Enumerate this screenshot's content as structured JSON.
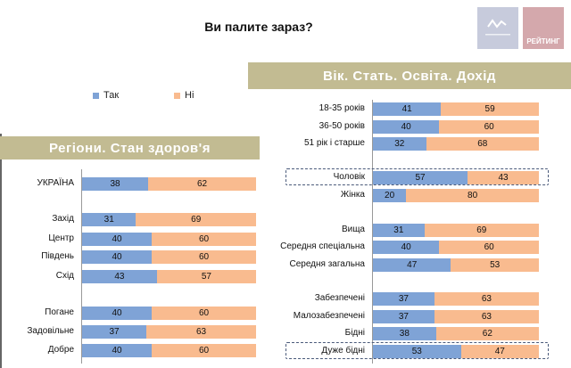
{
  "title": "Ви палите зараз?",
  "logos": {
    "left": "",
    "right": "РЕЙТИНГ"
  },
  "colors": {
    "tak": "#7fa3d6",
    "ni": "#f9bb8f",
    "band": "#c2bb92"
  },
  "legend": [
    {
      "label": "Так",
      "color": "#7fa3d6"
    },
    {
      "label": "Ні",
      "color": "#f9bb8f"
    }
  ],
  "chart_data": [
    {
      "type": "bar",
      "stacked": true,
      "orientation": "horizontal",
      "title": "Регіони. Стан здоров'я",
      "categories": [
        "УКРАЇНА",
        "Захід",
        "Центр",
        "Південь",
        "Схід",
        "Погане",
        "Задовільне",
        "Добре"
      ],
      "series": [
        {
          "name": "Так",
          "values": [
            38,
            31,
            40,
            40,
            43,
            40,
            37,
            40
          ]
        },
        {
          "name": "Ні",
          "values": [
            62,
            69,
            60,
            60,
            57,
            60,
            63,
            60
          ]
        }
      ],
      "xlim": [
        0,
        100
      ]
    },
    {
      "type": "bar",
      "stacked": true,
      "orientation": "horizontal",
      "title": "Вік. Стать. Освіта. Дохід",
      "categories": [
        "18-35 років",
        "36-50 років",
        "51 рік і старше",
        "Чоловік",
        "Жінка",
        "Вища",
        "Середня спеціальна",
        "Середня загальна",
        "Забезпечені",
        "Малозабезпечені",
        "Бідні",
        "Дуже бідні"
      ],
      "series": [
        {
          "name": "Так",
          "values": [
            41,
            40,
            32,
            57,
            20,
            31,
            40,
            47,
            37,
            37,
            38,
            53
          ]
        },
        {
          "name": "Ні",
          "values": [
            59,
            60,
            68,
            43,
            80,
            69,
            60,
            53,
            63,
            63,
            62,
            47
          ]
        }
      ],
      "highlighted": [
        "Чоловік",
        "Дуже бідні"
      ],
      "xlim": [
        0,
        100
      ]
    }
  ]
}
